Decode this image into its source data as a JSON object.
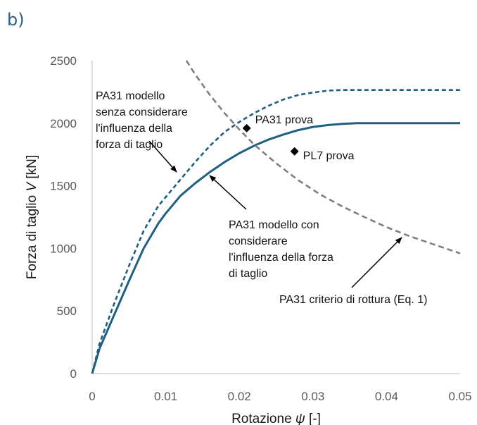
{
  "panel_label": "b)",
  "chart_data": {
    "type": "line",
    "title": "",
    "xlabel": "Rotazione ψ [-]",
    "ylabel": "Forza di taglio V [kN]",
    "xlim": [
      0,
      0.05
    ],
    "ylim": [
      0,
      2500
    ],
    "x_ticks": [
      "0",
      "0.01",
      "0.02",
      "0.03",
      "0.04",
      "0.05"
    ],
    "y_ticks": [
      "0",
      "500",
      "1000",
      "1500",
      "2000",
      "2500"
    ],
    "grid": false,
    "series": [
      {
        "name": "PA31 modello senza considerare l'influenza della forza di taglio",
        "style": "dashed",
        "color": "#1f5f7f",
        "x": [
          0,
          0.001,
          0.003,
          0.005,
          0.007,
          0.009,
          0.01,
          0.012,
          0.014,
          0.016,
          0.018,
          0.02,
          0.022,
          0.024,
          0.026,
          0.028,
          0.03,
          0.032,
          0.034,
          0.036,
          0.05
        ],
        "y": [
          0,
          240,
          560,
          860,
          1140,
          1340,
          1410,
          1550,
          1690,
          1820,
          1930,
          2010,
          2080,
          2140,
          2190,
          2225,
          2245,
          2260,
          2265,
          2265,
          2265
        ]
      },
      {
        "name": "PA31 modello con considerare l'influenza della forza di taglio",
        "style": "solid",
        "color": "#1f5f7f",
        "x": [
          0,
          0.001,
          0.003,
          0.005,
          0.007,
          0.009,
          0.01,
          0.012,
          0.014,
          0.016,
          0.018,
          0.02,
          0.022,
          0.024,
          0.026,
          0.028,
          0.03,
          0.032,
          0.034,
          0.036,
          0.05
        ],
        "y": [
          0,
          200,
          470,
          740,
          1000,
          1200,
          1280,
          1420,
          1520,
          1610,
          1690,
          1760,
          1820,
          1870,
          1910,
          1945,
          1970,
          1985,
          1995,
          2000,
          2000
        ]
      },
      {
        "name": "PA31 criterio di rottura (Eq. 1)",
        "style": "dashed",
        "color": "#7f7f7f",
        "x": [
          0.0128,
          0.014,
          0.016,
          0.018,
          0.02,
          0.022,
          0.025,
          0.028,
          0.031,
          0.034,
          0.037,
          0.04,
          0.043,
          0.046,
          0.05
        ],
        "y": [
          2500,
          2390,
          2225,
          2080,
          1950,
          1830,
          1680,
          1545,
          1430,
          1335,
          1250,
          1170,
          1100,
          1040,
          960
        ]
      }
    ],
    "points": [
      {
        "label": "PA31 prova",
        "x": 0.021,
        "y": 1960,
        "marker": "diamond"
      },
      {
        "label": "PL7 prova",
        "x": 0.0275,
        "y": 1775,
        "marker": "diamond"
      }
    ],
    "annotations": [
      {
        "lines": [
          "PA31 modello",
          "senza considerare",
          "l'influenza della",
          "forza di taglio"
        ]
      },
      {
        "lines": [
          "PA31 modello con",
          "considerare",
          "l'influenza della forza",
          "di taglio"
        ]
      },
      {
        "lines": [
          "PA31 criterio di rottura (Eq. 1)"
        ]
      }
    ]
  }
}
